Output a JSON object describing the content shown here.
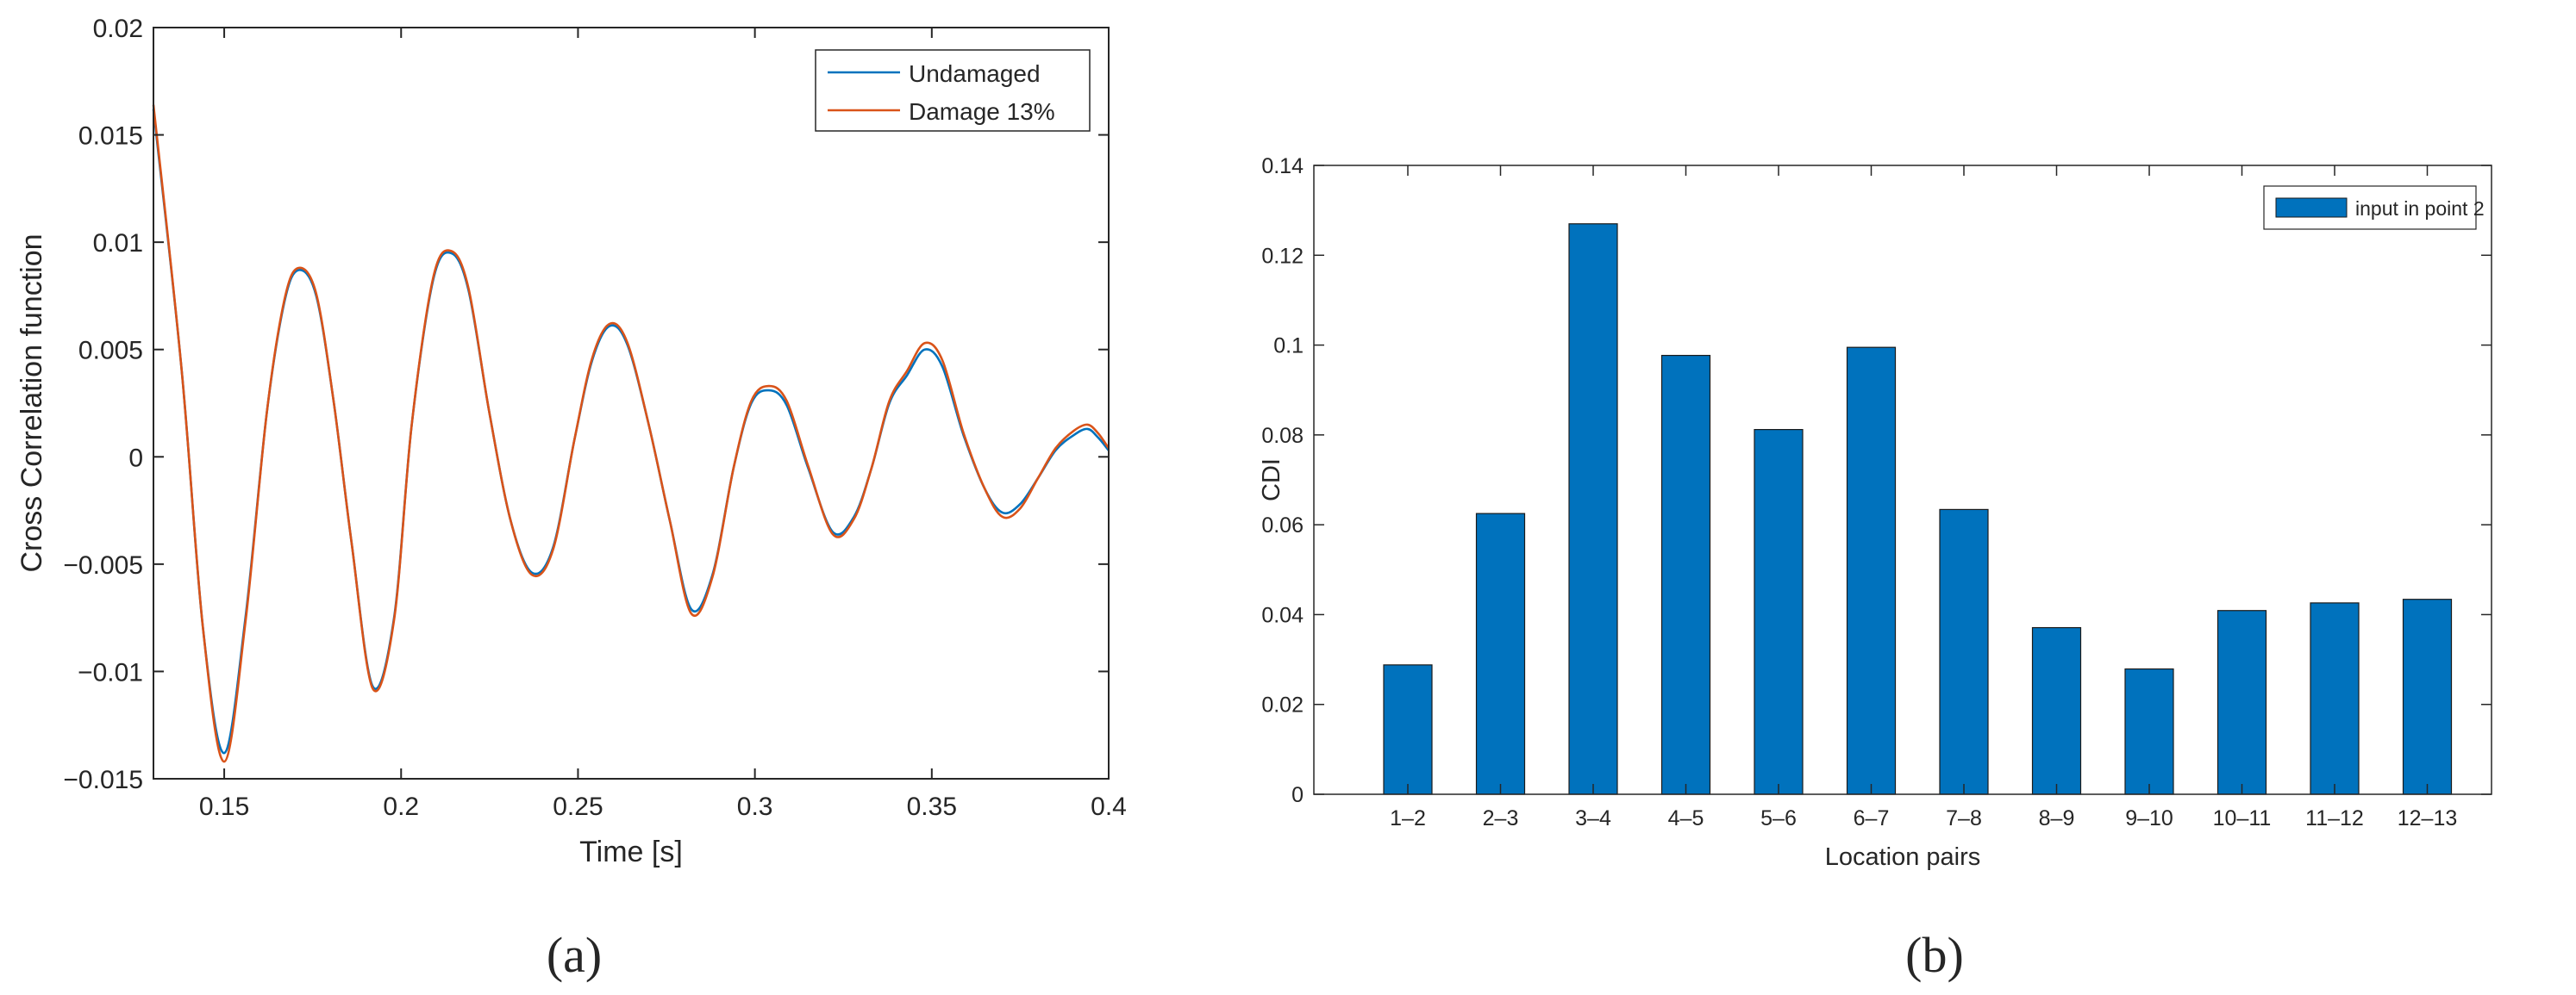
{
  "panels": [
    {
      "label": "(a)"
    },
    {
      "label": "(b)"
    }
  ],
  "chart_data": [
    {
      "type": "line",
      "xlabel": "Time [s]",
      "ylabel": "Cross Correlation function",
      "xlim": [
        0.13,
        0.4
      ],
      "ylim": [
        -0.015,
        0.02
      ],
      "xticks": [
        0.15,
        0.2,
        0.25,
        0.3,
        0.35,
        0.4
      ],
      "xtick_labels": [
        "0.15",
        "0.2",
        "0.25",
        "0.3",
        "0.35",
        "0.4"
      ],
      "yticks": [
        -0.015,
        -0.01,
        -0.005,
        0,
        0.005,
        0.01,
        0.015,
        0.02
      ],
      "ytick_labels": [
        "−0.015",
        "−0.01",
        "−0.005",
        "0",
        "0.005",
        "0.01",
        "0.015",
        "0.02"
      ],
      "grid": false,
      "legend_position": "top-right",
      "series": [
        {
          "name": "Undamaged",
          "color": "#0072BD",
          "x": [
            0.13,
            0.138,
            0.144,
            0.15,
            0.156,
            0.162,
            0.167,
            0.171,
            0.176,
            0.181,
            0.186,
            0.192,
            0.198,
            0.203,
            0.209,
            0.214,
            0.219,
            0.225,
            0.231,
            0.237,
            0.243,
            0.249,
            0.254,
            0.259,
            0.264,
            0.27,
            0.276,
            0.282,
            0.288,
            0.294,
            0.299,
            0.304,
            0.309,
            0.315,
            0.322,
            0.328,
            0.333,
            0.338,
            0.343,
            0.348,
            0.353,
            0.359,
            0.365,
            0.37,
            0.375,
            0.38,
            0.385,
            0.39,
            0.394,
            0.397,
            0.4
          ],
          "y": [
            0.0162,
            0.004,
            -0.008,
            -0.0138,
            -0.0075,
            0.002,
            0.0072,
            0.0087,
            0.0075,
            0.0025,
            -0.004,
            -0.0107,
            -0.0075,
            0.0015,
            0.0082,
            0.0095,
            0.0078,
            0.002,
            -0.003,
            -0.0054,
            -0.0042,
            0.0008,
            0.0045,
            0.0061,
            0.0052,
            0.0015,
            -0.003,
            -0.0071,
            -0.0055,
            -0.0005,
            0.0025,
            0.0031,
            0.0024,
            -0.0005,
            -0.0035,
            -0.0028,
            -0.0005,
            0.0025,
            0.0038,
            0.005,
            0.0042,
            0.001,
            -0.0015,
            -0.0026,
            -0.0022,
            -0.001,
            0.0003,
            0.001,
            0.0013,
            0.0009,
            0.0003
          ]
        },
        {
          "name": "Damage 13%",
          "color": "#D95319",
          "x": [
            0.13,
            0.138,
            0.144,
            0.15,
            0.156,
            0.162,
            0.167,
            0.171,
            0.176,
            0.181,
            0.186,
            0.192,
            0.198,
            0.203,
            0.209,
            0.214,
            0.219,
            0.225,
            0.231,
            0.237,
            0.243,
            0.249,
            0.254,
            0.259,
            0.264,
            0.27,
            0.276,
            0.282,
            0.288,
            0.294,
            0.299,
            0.304,
            0.309,
            0.315,
            0.322,
            0.328,
            0.333,
            0.338,
            0.343,
            0.348,
            0.353,
            0.359,
            0.365,
            0.37,
            0.375,
            0.38,
            0.385,
            0.39,
            0.394,
            0.397,
            0.4
          ],
          "y": [
            0.0164,
            0.004,
            -0.008,
            -0.0142,
            -0.0077,
            0.002,
            0.0073,
            0.0088,
            0.0076,
            0.0025,
            -0.004,
            -0.0108,
            -0.0076,
            0.0015,
            0.0083,
            0.0096,
            0.0079,
            0.002,
            -0.003,
            -0.0055,
            -0.0043,
            0.0008,
            0.0046,
            0.0062,
            0.0053,
            0.0015,
            -0.003,
            -0.0073,
            -0.0056,
            -0.0005,
            0.0026,
            0.0033,
            0.0026,
            -0.0004,
            -0.0036,
            -0.0029,
            -0.0005,
            0.0026,
            0.004,
            0.0053,
            0.0045,
            0.0011,
            -0.0015,
            -0.0028,
            -0.0024,
            -0.001,
            0.0004,
            0.0012,
            0.0015,
            0.0011,
            0.0004
          ]
        }
      ]
    },
    {
      "type": "bar",
      "xlabel": "Location pairs",
      "ylabel": "CDI",
      "ylim": [
        0,
        0.14
      ],
      "yticks": [
        0,
        0.02,
        0.04,
        0.06,
        0.08,
        0.1,
        0.12,
        0.14
      ],
      "ytick_labels": [
        "0",
        "0.02",
        "0.04",
        "0.06",
        "0.08",
        "0.1",
        "0.12",
        "0.14"
      ],
      "categories": [
        "1–2",
        "2–3",
        "3–4",
        "4–5",
        "5–6",
        "6–7",
        "7–8",
        "8–9",
        "9–10",
        "10–11",
        "11–12",
        "12–13"
      ],
      "grid": false,
      "legend_position": "top-right",
      "series": [
        {
          "name": "input in point 2",
          "color": "#0072BD",
          "values": [
            0.0288,
            0.0625,
            0.127,
            0.0977,
            0.0812,
            0.0995,
            0.0634,
            0.0371,
            0.0279,
            0.0409,
            0.0426,
            0.0434
          ]
        }
      ]
    }
  ]
}
